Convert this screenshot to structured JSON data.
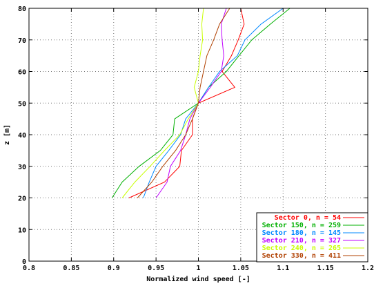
{
  "chart_data": {
    "type": "line",
    "title": "",
    "xlabel": "Normalized wind speed [-]",
    "ylabel": "z [m]",
    "xlim": [
      0.8,
      1.2
    ],
    "ylim": [
      0,
      80
    ],
    "xticks": [
      "0.8",
      "0.85",
      "0.9",
      "0.95",
      "1",
      "1.05",
      "1.1",
      "1.15",
      "1.2"
    ],
    "yticks": [
      "0",
      "10",
      "20",
      "30",
      "40",
      "50",
      "60",
      "70",
      "80"
    ],
    "grid": true,
    "legend_position": "bottom-right",
    "series": [
      {
        "name": "Sector 0, n = 54",
        "color": "#ff0000",
        "points": [
          [
            0.918,
            20
          ],
          [
            0.96,
            25
          ],
          [
            0.978,
            30
          ],
          [
            0.98,
            35
          ],
          [
            0.993,
            40
          ],
          [
            0.993,
            45
          ],
          [
            1.0,
            50
          ],
          [
            1.043,
            55
          ],
          [
            1.028,
            60
          ],
          [
            1.039,
            65
          ],
          [
            1.047,
            70
          ],
          [
            1.054,
            75
          ],
          [
            1.05,
            80
          ]
        ]
      },
      {
        "name": "Sector 150, n = 259",
        "color": "#00b000",
        "points": [
          [
            0.898,
            20
          ],
          [
            0.91,
            25
          ],
          [
            0.93,
            30
          ],
          [
            0.955,
            35
          ],
          [
            0.97,
            40
          ],
          [
            0.972,
            45
          ],
          [
            1.0,
            50
          ],
          [
            1.012,
            55
          ],
          [
            1.033,
            60
          ],
          [
            1.048,
            65
          ],
          [
            1.063,
            70
          ],
          [
            1.085,
            75
          ],
          [
            1.108,
            80
          ]
        ]
      },
      {
        "name": "Sector 180, n = 145",
        "color": "#0088ff",
        "points": [
          [
            0.935,
            20
          ],
          [
            0.942,
            25
          ],
          [
            0.95,
            30
          ],
          [
            0.965,
            35
          ],
          [
            0.979,
            40
          ],
          [
            0.985,
            45
          ],
          [
            1.0,
            50
          ],
          [
            1.012,
            55
          ],
          [
            1.025,
            60
          ],
          [
            1.046,
            65
          ],
          [
            1.055,
            70
          ],
          [
            1.074,
            75
          ],
          [
            1.1,
            80
          ]
        ]
      },
      {
        "name": "Sector 210, n = 327",
        "color": "#c000ff",
        "points": [
          [
            0.95,
            20
          ],
          [
            0.963,
            25
          ],
          [
            0.967,
            30
          ],
          [
            0.979,
            35
          ],
          [
            0.985,
            40
          ],
          [
            0.99,
            45
          ],
          [
            1.0,
            50
          ],
          [
            1.014,
            55
          ],
          [
            1.027,
            60
          ],
          [
            1.03,
            65
          ],
          [
            1.028,
            70
          ],
          [
            1.027,
            75
          ],
          [
            1.033,
            80
          ]
        ]
      },
      {
        "name": "Sector 240, n = 265",
        "color": "#c8ff00",
        "points": [
          [
            0.91,
            20
          ],
          [
            0.925,
            25
          ],
          [
            0.943,
            30
          ],
          [
            0.96,
            35
          ],
          [
            0.978,
            40
          ],
          [
            0.988,
            45
          ],
          [
            1.0,
            50
          ],
          [
            0.995,
            55
          ],
          [
            1.0,
            60
          ],
          [
            1.002,
            65
          ],
          [
            1.005,
            70
          ],
          [
            1.004,
            75
          ],
          [
            1.006,
            80
          ]
        ]
      },
      {
        "name": "Sector 330, n = 411",
        "color": "#b04000",
        "points": [
          [
            0.928,
            20
          ],
          [
            0.945,
            25
          ],
          [
            0.958,
            30
          ],
          [
            0.973,
            35
          ],
          [
            0.985,
            40
          ],
          [
            0.993,
            45
          ],
          [
            1.0,
            50
          ],
          [
            1.002,
            55
          ],
          [
            1.006,
            60
          ],
          [
            1.01,
            65
          ],
          [
            1.018,
            70
          ],
          [
            1.025,
            75
          ],
          [
            1.037,
            80
          ]
        ]
      }
    ]
  }
}
